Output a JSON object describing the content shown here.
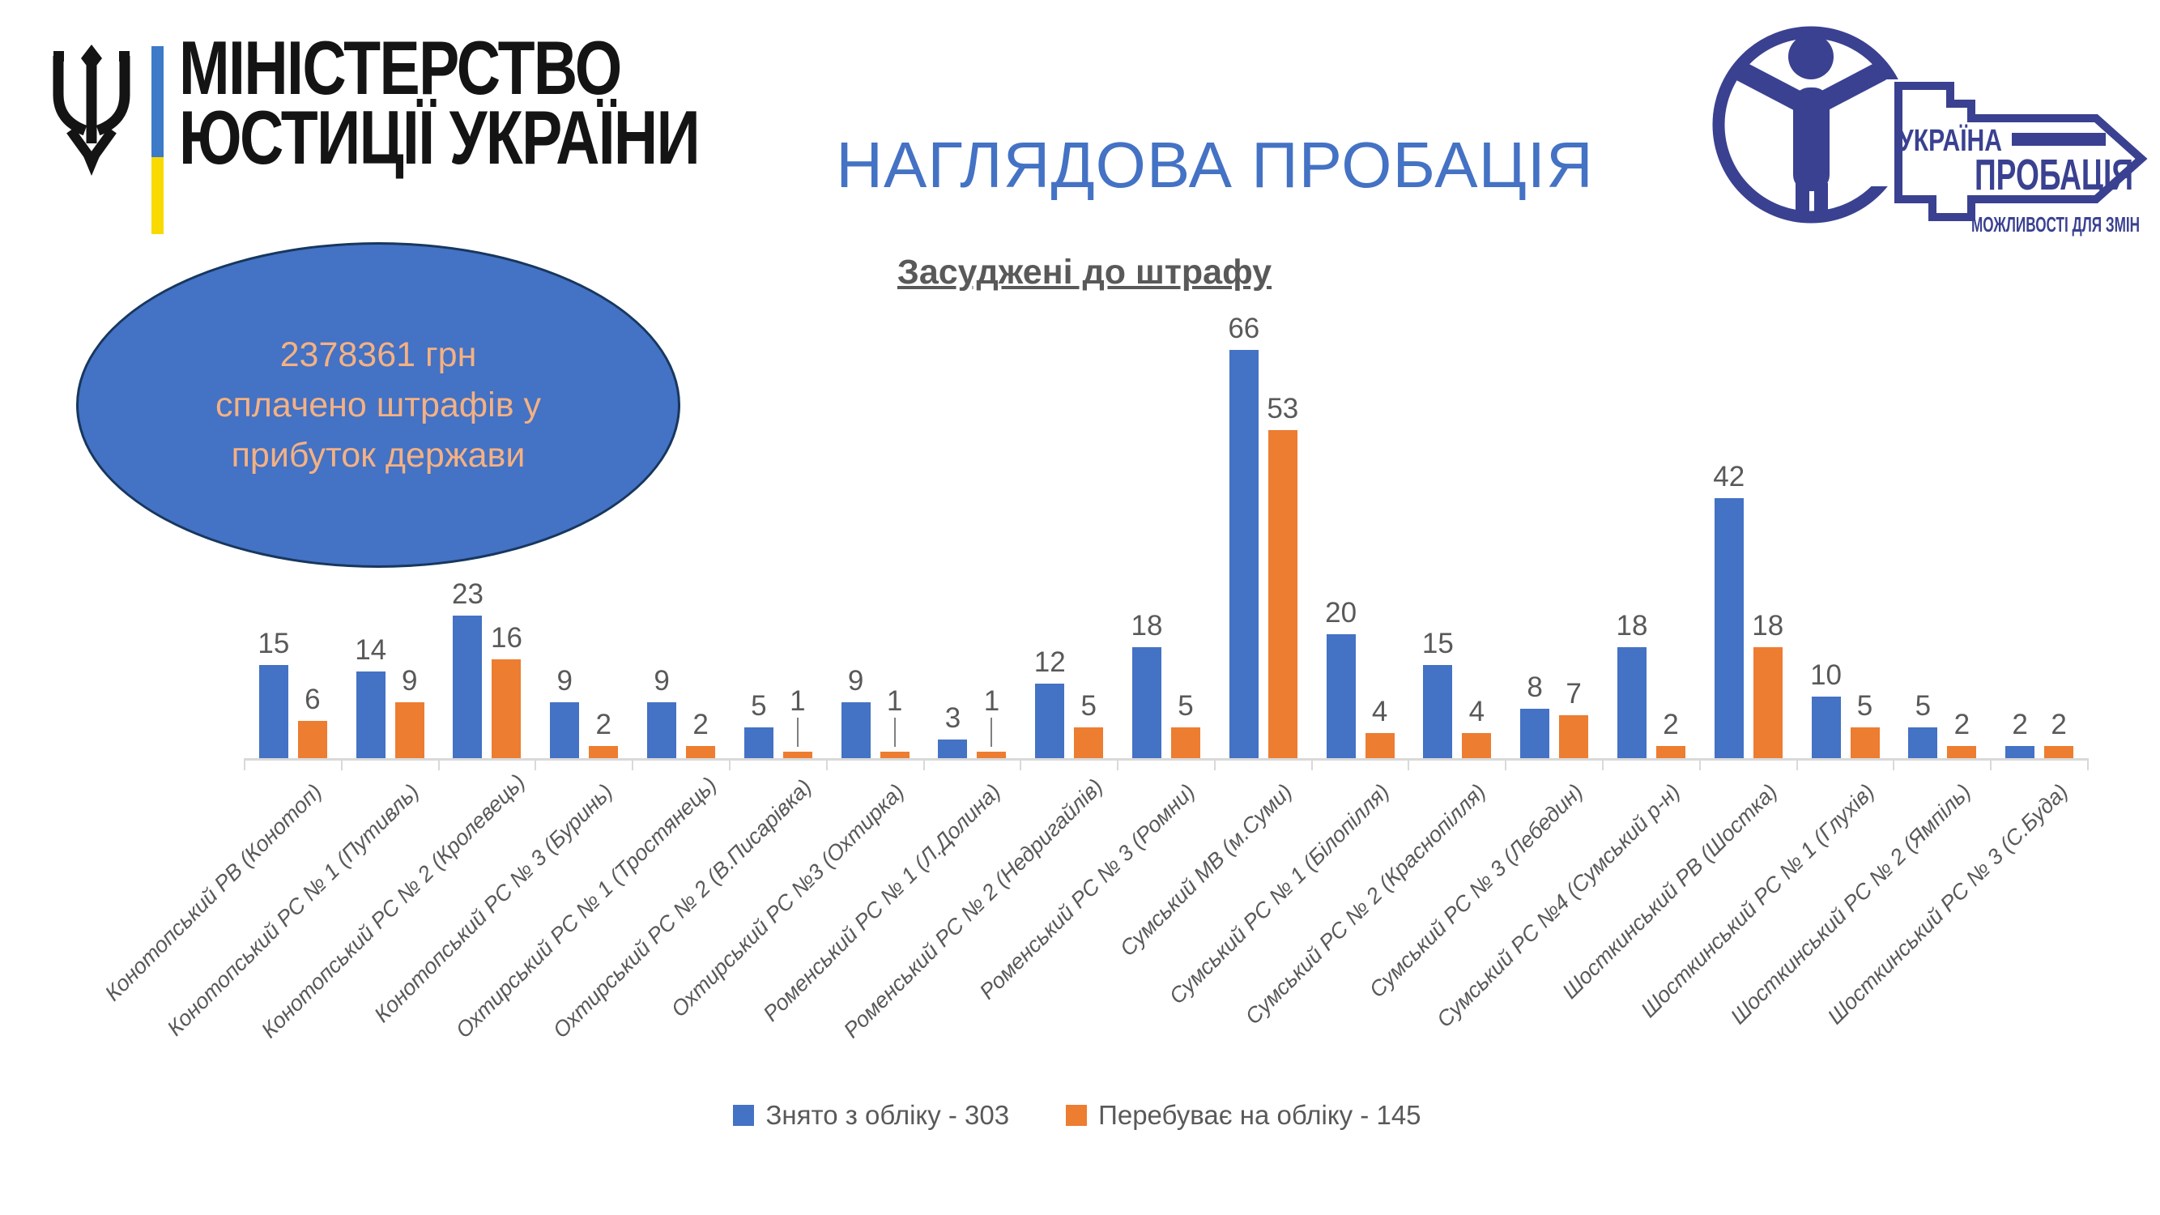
{
  "header": {
    "ministry": {
      "name_line1": "МІНІСТЕРСТВО",
      "name_line2": "ЮСТИЦІЇ УКРАЇНИ"
    },
    "page_title": "НАГЛЯДОВА ПРОБАЦІЯ",
    "probation_logo": {
      "country": "УКРАЇНА",
      "brand": "ПРОБАЦІЯ",
      "tagline": "МОЖЛИВОСТІ ДЛЯ ЗМІН",
      "color": "#3A4191"
    }
  },
  "callout": {
    "lines": [
      "2378361 грн",
      "сплачено штрафів у",
      "прибуток держави"
    ],
    "fill_color": "#4472C4",
    "border_color": "#17375E",
    "text_color": "#F4B183"
  },
  "chart_data": {
    "type": "bar",
    "title": "Засуджені до штрафу",
    "categories": [
      "Конотопський РВ (Конотоп)",
      "Конотопський РС № 1 (Путивль)",
      "Конотопський РС № 2 (Кролевець)",
      "Конотопський РС № 3 (Буринь)",
      "Охтирський РС № 1 (Тростянець)",
      "Охтирський РС № 2 (В.Писарівка)",
      "Охтирський РС №3 (Охтирка)",
      "Роменський РС № 1 (Л.Долина)",
      "Роменський РС № 2 (Недригайлів)",
      "Роменський РС № 3 (Ромни)",
      "Сумський МВ (м.Суми)",
      "Сумський РС № 1 (Білопілля)",
      "Сумський РС № 2 (Краснопілля)",
      "Сумський РС № 3 (Лебедин)",
      "Сумський РС №4 (Сумський р-н)",
      "Шосткинський РВ (Шостка)",
      "Шосткинський РС № 1 (Глухів)",
      "Шосткинський РС № 2 (Ямпіль)",
      "Шосткинський РС № 3 (С.Буда)"
    ],
    "series": [
      {
        "name": "Знято з обліку - 303",
        "color": "#4472C4",
        "values": [
          15,
          14,
          23,
          9,
          9,
          5,
          9,
          3,
          12,
          18,
          66,
          20,
          15,
          8,
          18,
          42,
          10,
          5,
          2
        ]
      },
      {
        "name": "Перебуває на обліку - 145",
        "color": "#ED7D31",
        "values": [
          6,
          9,
          16,
          2,
          2,
          1,
          1,
          1,
          5,
          5,
          53,
          4,
          4,
          7,
          2,
          18,
          5,
          2,
          2
        ]
      }
    ],
    "ylim": [
      0,
      70
    ],
    "grid": false,
    "data_labels": true,
    "legend_position": "bottom",
    "axis_color": "#D9D9D9",
    "label_color": "#595959"
  }
}
